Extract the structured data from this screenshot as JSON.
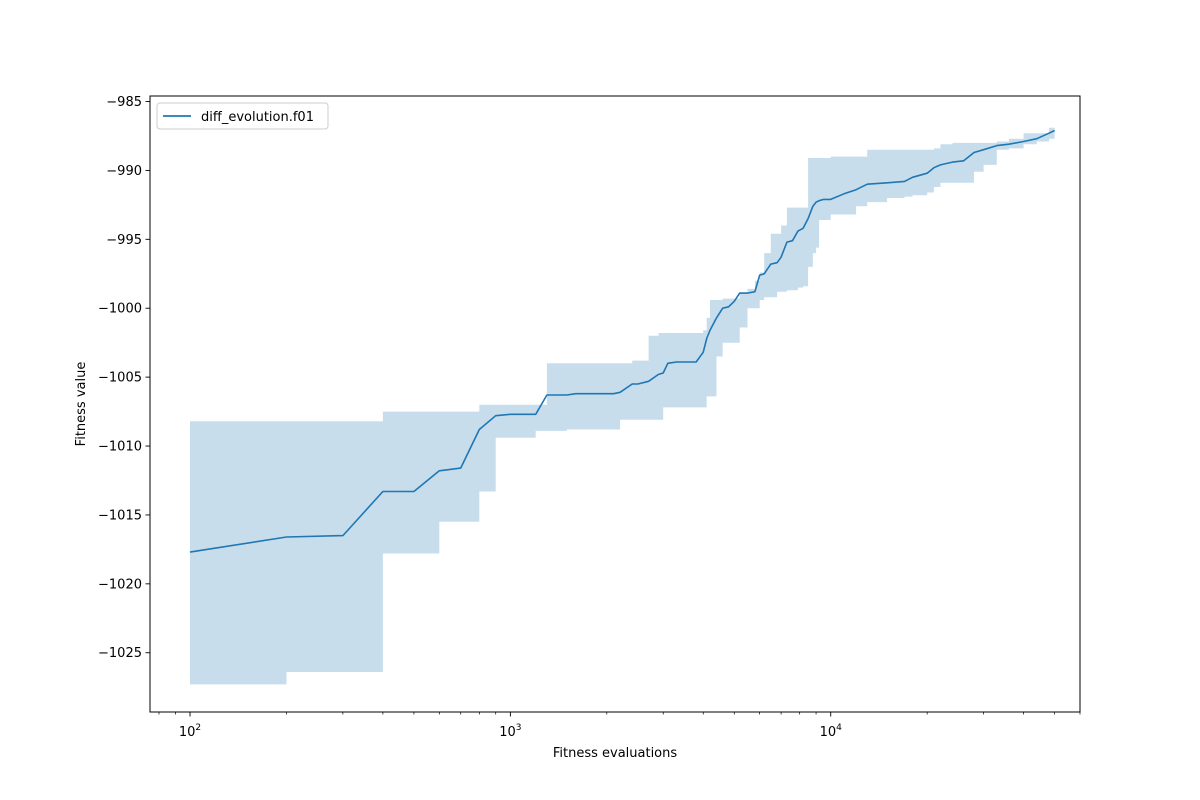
{
  "chart_data": {
    "type": "line",
    "xlabel": "Fitness evaluations",
    "ylabel": "Fitness value",
    "x_scale": "log",
    "xlim": [
      75,
      60000
    ],
    "ylim": [
      -1029.3,
      -984.6
    ],
    "x_ticks": [
      {
        "value": 100,
        "base": "10",
        "exp": "2"
      },
      {
        "value": 1000,
        "base": "10",
        "exp": "3"
      },
      {
        "value": 10000,
        "base": "10",
        "exp": "4"
      }
    ],
    "y_ticks": [
      {
        "value": -985,
        "label": "−985"
      },
      {
        "value": -990,
        "label": "−990"
      },
      {
        "value": -995,
        "label": "−995"
      },
      {
        "value": -1000,
        "label": "−1000"
      },
      {
        "value": -1005,
        "label": "−1005"
      },
      {
        "value": -1010,
        "label": "−1010"
      },
      {
        "value": -1015,
        "label": "−1015"
      },
      {
        "value": -1020,
        "label": "−1020"
      },
      {
        "value": -1025,
        "label": "−1025"
      }
    ],
    "grid": false,
    "legend_position": "top-left",
    "colors": {
      "line": "#1f77b4",
      "band": "#1f77b4",
      "band_opacity": 0.25
    },
    "series": [
      {
        "name": "diff_evolution.f01",
        "x": [
          100,
          200,
          300,
          400,
          500,
          600,
          700,
          800,
          900,
          1000,
          1200,
          1300,
          1500,
          1600,
          2100,
          2200,
          2400,
          2500,
          2700,
          2900,
          3000,
          3100,
          3300,
          3800,
          4000,
          4100,
          4200,
          4400,
          4600,
          4800,
          5000,
          5200,
          5500,
          5800,
          6000,
          6200,
          6500,
          6800,
          7000,
          7300,
          7600,
          7900,
          8200,
          8500,
          8800,
          9000,
          9200,
          9500,
          10000,
          11000,
          12000,
          13000,
          15000,
          17000,
          18000,
          20000,
          21000,
          22000,
          24000,
          26000,
          28000,
          30000,
          33000,
          36000,
          40000,
          44000,
          48000,
          50000
        ],
        "mean": [
          -1017.7,
          -1016.6,
          -1016.5,
          -1013.3,
          -1013.3,
          -1011.8,
          -1011.6,
          -1008.8,
          -1007.8,
          -1007.7,
          -1007.7,
          -1006.3,
          -1006.3,
          -1006.2,
          -1006.2,
          -1006.1,
          -1005.5,
          -1005.5,
          -1005.3,
          -1004.8,
          -1004.7,
          -1004.0,
          -1003.9,
          -1003.9,
          -1003.2,
          -1002.2,
          -1001.6,
          -1000.7,
          -1000.0,
          -999.9,
          -999.5,
          -998.9,
          -998.9,
          -998.8,
          -997.6,
          -997.5,
          -996.8,
          -996.7,
          -996.3,
          -995.2,
          -995.1,
          -994.4,
          -994.2,
          -993.5,
          -992.6,
          -992.3,
          -992.2,
          -992.1,
          -992.1,
          -991.7,
          -991.4,
          -991.0,
          -990.9,
          -990.8,
          -990.5,
          -990.2,
          -989.8,
          -989.6,
          -989.4,
          -989.3,
          -988.7,
          -988.5,
          -988.2,
          -988.1,
          -987.9,
          -987.7,
          -987.3,
          -987.1
        ],
        "upper": [
          -1008.2,
          -1008.2,
          -1008.2,
          -1007.5,
          -1007.5,
          -1007.5,
          -1007.5,
          -1007.0,
          -1007.0,
          -1007.0,
          -1007.0,
          -1004.0,
          -1004.0,
          -1004.0,
          -1004.0,
          -1004.0,
          -1003.8,
          -1003.8,
          -1002.0,
          -1001.8,
          -1001.8,
          -1001.8,
          -1001.8,
          -1001.8,
          -1001.6,
          -1000.7,
          -999.4,
          -999.4,
          -999.3,
          -999.3,
          -999.3,
          -998.9,
          -998.6,
          -998.0,
          -997.4,
          -996.0,
          -994.6,
          -994.6,
          -994.0,
          -992.7,
          -992.7,
          -992.7,
          -992.7,
          -989.1,
          -989.1,
          -989.1,
          -989.1,
          -989.1,
          -989.0,
          -989.0,
          -989.0,
          -988.5,
          -988.5,
          -988.5,
          -988.5,
          -988.5,
          -988.4,
          -988.1,
          -988.0,
          -988.0,
          -988.0,
          -988.0,
          -987.9,
          -987.7,
          -987.3,
          -987.3,
          -986.9,
          -986.9
        ],
        "lower": [
          -1027.3,
          -1026.4,
          -1026.4,
          -1017.8,
          -1017.8,
          -1015.5,
          -1015.5,
          -1013.3,
          -1009.4,
          -1009.4,
          -1008.9,
          -1008.9,
          -1008.8,
          -1008.8,
          -1008.8,
          -1008.1,
          -1008.1,
          -1008.1,
          -1008.1,
          -1008.1,
          -1007.2,
          -1007.2,
          -1007.2,
          -1007.2,
          -1007.2,
          -1006.4,
          -1006.4,
          -1003.5,
          -1002.5,
          -1002.5,
          -1002.5,
          -1001.4,
          -1000.0,
          -1000.0,
          -999.4,
          -999.2,
          -999.2,
          -998.8,
          -998.8,
          -998.7,
          -998.7,
          -998.5,
          -998.4,
          -997.0,
          -996.0,
          -995.6,
          -993.6,
          -993.6,
          -993.2,
          -993.2,
          -992.6,
          -992.3,
          -992.0,
          -991.9,
          -991.8,
          -991.6,
          -991.2,
          -990.9,
          -990.9,
          -990.9,
          -990.1,
          -989.6,
          -988.5,
          -988.4,
          -988.1,
          -987.9,
          -987.7,
          -987.7
        ]
      }
    ]
  }
}
